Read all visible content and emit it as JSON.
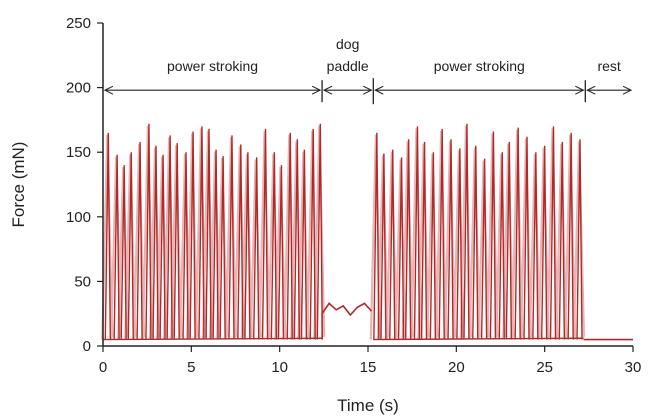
{
  "chart_data": {
    "type": "line",
    "xlabel": "Time (s)",
    "ylabel": "Force (mN)",
    "xlim": [
      0,
      30
    ],
    "ylim": [
      0,
      250
    ],
    "xticks": [
      0,
      5,
      10,
      15,
      20,
      25,
      30
    ],
    "yticks": [
      0,
      50,
      100,
      150,
      200,
      250
    ],
    "grid": false,
    "colors": {
      "trace": "#b02a2a",
      "trace_light": "#e8b4b4",
      "axis": "#222222"
    },
    "series": [
      {
        "peaks_t": [
          0.3,
          0.8,
          1.2,
          1.6,
          2.1,
          2.6,
          3.0,
          3.4,
          3.8,
          4.2,
          4.7,
          5.1,
          5.6,
          6.0,
          6.4,
          6.8,
          7.3,
          7.8,
          8.2,
          8.7,
          9.2,
          9.7,
          10.1,
          10.6,
          11.0,
          11.4,
          11.9,
          12.3,
          15.5,
          15.9,
          16.4,
          16.9,
          17.3,
          17.8,
          18.2,
          18.7,
          19.2,
          19.7,
          20.2,
          20.6,
          21.1,
          21.6,
          22.1,
          22.6,
          23.0,
          23.5,
          24.0,
          24.5,
          25.0,
          25.5,
          26.0,
          26.5,
          27.0
        ],
        "peaks_f": [
          165,
          148,
          140,
          150,
          158,
          172,
          155,
          148,
          163,
          157,
          150,
          166,
          170,
          168,
          152,
          147,
          163,
          156,
          150,
          146,
          168,
          150,
          140,
          165,
          160,
          152,
          168,
          172,
          165,
          149,
          152,
          146,
          160,
          170,
          158,
          150,
          168,
          160,
          153,
          172,
          155,
          145,
          166,
          150,
          158,
          169,
          162,
          150,
          155,
          170,
          158,
          165,
          160
        ],
        "baseline_f": 5,
        "dog_paddle_t": [
          12.4,
          12.8,
          13.2,
          13.6,
          14.0,
          14.4,
          14.8,
          15.2
        ],
        "dog_paddle_f": [
          25,
          33,
          28,
          31,
          24,
          30,
          33,
          27
        ],
        "rest_t": [
          27.2,
          30.0
        ],
        "rest_f": [
          5,
          5
        ]
      }
    ],
    "annotations": [
      {
        "text": "power stroking",
        "x_start": 0.0,
        "x_end": 12.4,
        "label_y": 213
      },
      {
        "text": "dog",
        "x_start": 12.4,
        "x_end": 15.3,
        "label_y": 230
      },
      {
        "text": "paddle",
        "x_start": 12.4,
        "x_end": 15.3,
        "label_y": 213
      },
      {
        "text": "power stroking",
        "x_start": 15.3,
        "x_end": 27.3,
        "label_y": 213
      },
      {
        "text": "rest",
        "x_start": 27.3,
        "x_end": 30.0,
        "label_y": 213
      }
    ],
    "arrow_y": 198,
    "dividers_t": [
      12.4,
      15.3,
      27.3
    ]
  }
}
